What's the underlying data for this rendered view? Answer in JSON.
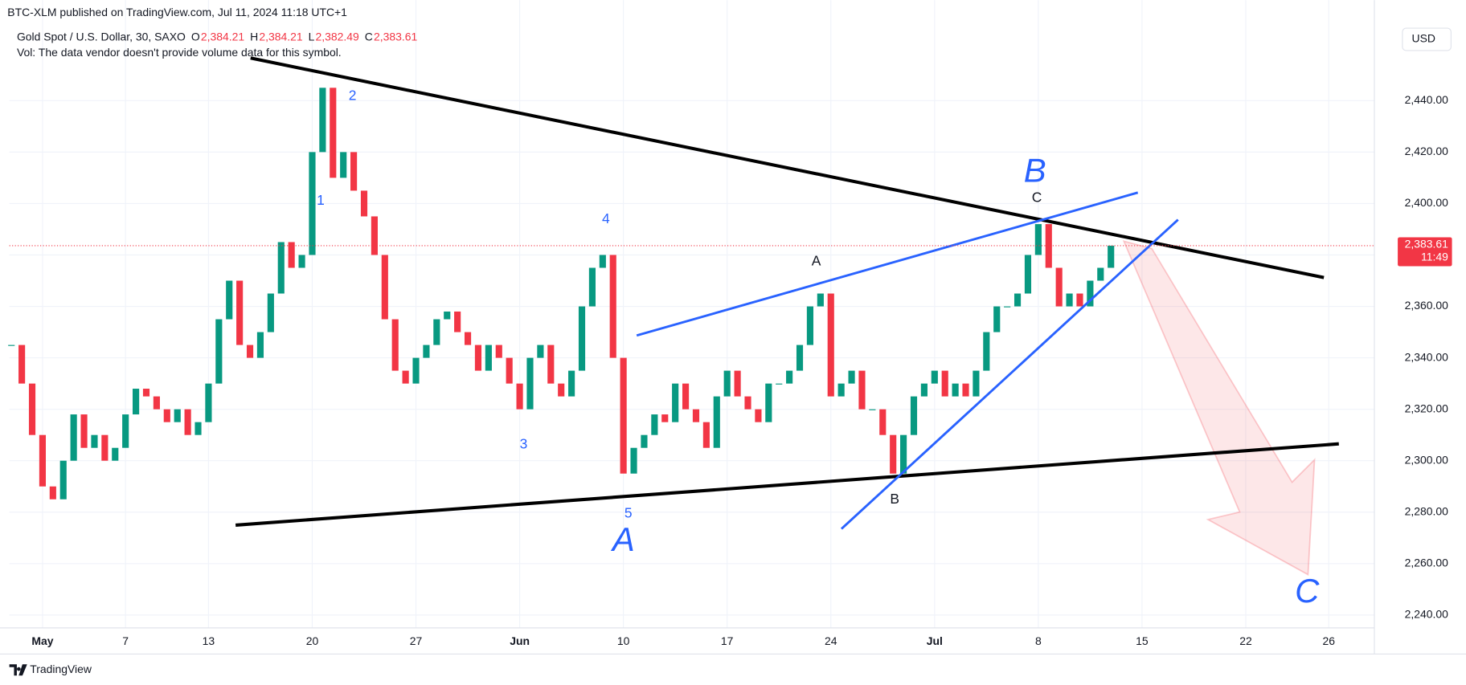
{
  "chart_data": {
    "type": "candles",
    "header": "BTC-XLM published on TradingView.com, Jul 11, 2024 11:18 UTC+1",
    "symbol": "Gold Spot / U.S. Dollar, 30, SAXO",
    "ohlc": [
      {
        "name": "O",
        "value": {
          "value": 2384.21,
          "label": "2,384.21"
        }
      },
      {
        "name": "H",
        "value": {
          "value": 2384.21,
          "label": "2,384.21"
        }
      },
      {
        "name": "L",
        "value": {
          "value": 2382.49,
          "label": "2,382.49"
        }
      },
      {
        "name": "C",
        "value": {
          "value": 2383.61,
          "label": "2,383.61"
        }
      }
    ],
    "volume_note": "Vol: The data vendor doesn't provide volume data for this symbol.",
    "currency": "USD",
    "last_price": {
      "value": 2383.61,
      "label": "2,383.61"
    },
    "countdown": "11:49",
    "footer": "TradingView",
    "wave_labels": [
      "1",
      "2",
      "3",
      "4",
      "5"
    ],
    "big_labels": [
      "A",
      "B",
      "C"
    ],
    "sub_labels": [
      "A",
      "B",
      "C"
    ],
    "up_color": "#089981",
    "down_color": "#f23645",
    "x": [
      -1.5,
      -1,
      -0.5,
      0,
      0.5,
      1,
      1.5,
      2,
      2.5,
      3,
      3.5,
      4,
      4.5,
      5,
      5.5,
      6,
      6.5,
      7,
      7.5,
      8,
      8.5,
      9,
      9.5,
      10,
      10.5,
      11,
      11.5,
      12,
      12.5,
      13,
      13.5,
      14,
      14.5,
      15,
      15.5,
      16,
      16.5,
      17,
      17.5,
      18,
      18.5,
      19,
      19.5,
      20,
      20.5,
      21,
      21.5,
      22,
      22.5,
      23,
      23.5,
      24,
      24.5,
      25,
      25.5,
      26,
      26.5,
      27,
      27.5,
      28,
      28.5,
      29,
      29.5,
      30,
      30.5,
      31,
      31.5,
      32,
      32.5,
      33,
      33.5,
      34,
      34.5,
      35,
      35.5,
      36,
      36.5,
      37,
      37.5,
      38,
      38.5,
      39,
      39.5,
      40,
      40.5,
      41,
      41.5,
      42,
      42.5,
      43,
      43.5,
      44,
      44.5,
      45,
      45.5,
      46,
      46.5,
      47,
      47.5,
      48,
      48.5,
      49,
      49.5,
      50,
      50.5,
      51,
      51.5
    ],
    "values": [
      2345,
      2330,
      2310,
      2290,
      2285,
      2300,
      2318,
      2305,
      2310,
      2300,
      2305,
      2318,
      2328,
      2325,
      2320,
      2315,
      2320,
      2310,
      2315,
      2330,
      2355,
      2370,
      2345,
      2340,
      2350,
      2365,
      2385,
      2375,
      2380,
      2420,
      2445,
      2410,
      2420,
      2405,
      2395,
      2380,
      2355,
      2335,
      2330,
      2340,
      2345,
      2355,
      2358,
      2350,
      2345,
      2335,
      2345,
      2340,
      2330,
      2320,
      2340,
      2345,
      2330,
      2325,
      2335,
      2360,
      2375,
      2380,
      2340,
      2295,
      2305,
      2310,
      2318,
      2315,
      2330,
      2320,
      2315,
      2305,
      2325,
      2335,
      2325,
      2320,
      2315,
      2330,
      2330,
      2335,
      2345,
      2360,
      2365,
      2325,
      2330,
      2335,
      2320,
      2320,
      2310,
      2295,
      2310,
      2325,
      2330,
      2335,
      2325,
      2330,
      2325,
      2335,
      2350,
      2360,
      2360,
      2365,
      2380,
      2392,
      2375,
      2360,
      2365,
      2360,
      2370,
      2375,
      2383.61
    ],
    "xlim": [
      -1.6,
      64.2
    ],
    "xticks": [
      {
        "value": 0,
        "label": "May"
      },
      {
        "value": 4,
        "label": "7"
      },
      {
        "value": 8,
        "label": "13"
      },
      {
        "value": 13,
        "label": "20"
      },
      {
        "value": 18,
        "label": "27"
      },
      {
        "value": 23,
        "label": "Jun"
      },
      {
        "value": 28,
        "label": "10"
      },
      {
        "value": 33,
        "label": "17"
      },
      {
        "value": 38,
        "label": "24"
      },
      {
        "value": 43,
        "label": "Jul"
      },
      {
        "value": 48,
        "label": "8"
      },
      {
        "value": 53,
        "label": "15"
      },
      {
        "value": 58,
        "label": "22"
      },
      {
        "value": 62,
        "label": "26"
      }
    ],
    "ylim": [
      2235,
      2470
    ],
    "yticks": [
      {
        "value": 2240,
        "label": "2,240.00"
      },
      {
        "value": 2260,
        "label": "2,260.00"
      },
      {
        "value": 2280,
        "label": "2,280.00"
      },
      {
        "value": 2300,
        "label": "2,300.00"
      },
      {
        "value": 2320,
        "label": "2,320.00"
      },
      {
        "value": 2340,
        "label": "2,340.00"
      },
      {
        "value": 2360,
        "label": "2,360.00"
      },
      {
        "value": 2380,
        "label": "2,380.00"
      },
      {
        "value": 2400,
        "label": "2,400.00"
      },
      {
        "value": 2420,
        "label": "2,420.00"
      },
      {
        "value": 2440,
        "label": "2,440.00"
      }
    ],
    "grid": true
  }
}
